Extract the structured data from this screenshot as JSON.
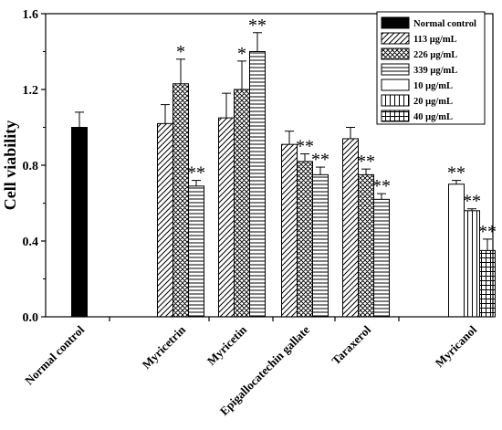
{
  "chart_data": {
    "type": "bar",
    "title": "",
    "xlabel": "",
    "ylabel": "Cell viability",
    "ylim": [
      0,
      1.6
    ],
    "y_ticks": [
      "0.0",
      "0.4",
      "0.8",
      "1.2",
      "1.6"
    ],
    "grid": false,
    "legend_position": "top-right",
    "legend": [
      "Normal control",
      "113 μg/mL",
      "226 μg/mL",
      "339 μg/mL",
      "10 μg/mL",
      "20 μg/mL",
      "40 μg/mL"
    ],
    "categories": [
      "Normal control",
      "Myricetrin",
      "Myricetin",
      "Epigallocatechin gallate",
      "Taraxerol",
      "Myricanol"
    ],
    "groups": [
      {
        "category": "Normal control",
        "bars": [
          {
            "series": "Normal control",
            "value": 1.0,
            "error": 0.08,
            "sig": ""
          }
        ]
      },
      {
        "category": "Myricetrin",
        "bars": [
          {
            "series": "113 μg/mL",
            "value": 1.02,
            "error": 0.1,
            "sig": ""
          },
          {
            "series": "226 μg/mL",
            "value": 1.23,
            "error": 0.13,
            "sig": "*"
          },
          {
            "series": "339 μg/mL",
            "value": 0.69,
            "error": 0.03,
            "sig": "**"
          }
        ]
      },
      {
        "category": "Myricetin",
        "bars": [
          {
            "series": "113 μg/mL",
            "value": 1.05,
            "error": 0.13,
            "sig": ""
          },
          {
            "series": "226 μg/mL",
            "value": 1.2,
            "error": 0.15,
            "sig": "*"
          },
          {
            "series": "339 μg/mL",
            "value": 1.4,
            "error": 0.1,
            "sig": "**"
          }
        ]
      },
      {
        "category": "Epigallocatechin gallate",
        "bars": [
          {
            "series": "113 μg/mL",
            "value": 0.91,
            "error": 0.07,
            "sig": ""
          },
          {
            "series": "226 μg/mL",
            "value": 0.82,
            "error": 0.04,
            "sig": "**"
          },
          {
            "series": "339 μg/mL",
            "value": 0.75,
            "error": 0.04,
            "sig": "**"
          }
        ]
      },
      {
        "category": "Taraxerol",
        "bars": [
          {
            "series": "113 μg/mL",
            "value": 0.94,
            "error": 0.06,
            "sig": ""
          },
          {
            "series": "226 μg/mL",
            "value": 0.75,
            "error": 0.03,
            "sig": "**"
          },
          {
            "series": "339 μg/mL",
            "value": 0.62,
            "error": 0.03,
            "sig": "**"
          }
        ]
      },
      {
        "category": "Myricanol",
        "bars": [
          {
            "series": "10 μg/mL",
            "value": 0.7,
            "error": 0.02,
            "sig": "**"
          },
          {
            "series": "20 μg/mL",
            "value": 0.56,
            "error": 0.01,
            "sig": "**"
          },
          {
            "series": "40 μg/mL",
            "value": 0.35,
            "error": 0.06,
            "sig": "**"
          }
        ]
      }
    ]
  }
}
